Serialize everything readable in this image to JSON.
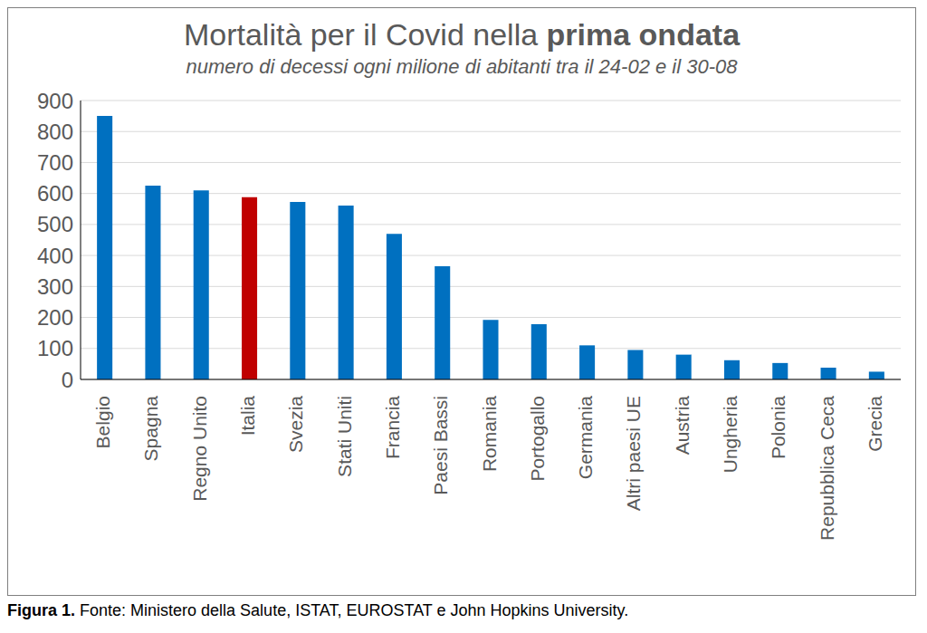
{
  "chart_data": {
    "type": "bar",
    "title": "Mortalità per il Covid nella prima ondata",
    "subtitle": "numero di decessi ogni milione di abitanti tra il 24-02 e il 30-08",
    "caption": "Figura 1. Fonte: Ministero della Salute, ISTAT, EUROSTAT e John Hopkins University.",
    "categories": [
      "Belgio",
      "Spagna",
      "Regno Unito",
      "Italia",
      "Svezia",
      "Stati Uniti",
      "Francia",
      "Paesi Bassi",
      "Romania",
      "Portogallo",
      "Germania",
      "Altri paesi UE",
      "Austria",
      "Ungheria",
      "Polonia",
      "Repubblica Ceca",
      "Grecia"
    ],
    "values": [
      850,
      625,
      610,
      588,
      573,
      561,
      470,
      365,
      192,
      178,
      110,
      95,
      80,
      62,
      53,
      38,
      25
    ],
    "colors": [
      "#0070c0",
      "#0070c0",
      "#0070c0",
      "#c00000",
      "#0070c0",
      "#0070c0",
      "#0070c0",
      "#0070c0",
      "#0070c0",
      "#0070c0",
      "#0070c0",
      "#0070c0",
      "#0070c0",
      "#0070c0",
      "#0070c0",
      "#0070c0",
      "#0070c0"
    ],
    "ylim": [
      0,
      900
    ],
    "yticks": [
      0,
      100,
      200,
      300,
      400,
      500,
      600,
      700,
      800,
      900
    ],
    "grid": true
  }
}
